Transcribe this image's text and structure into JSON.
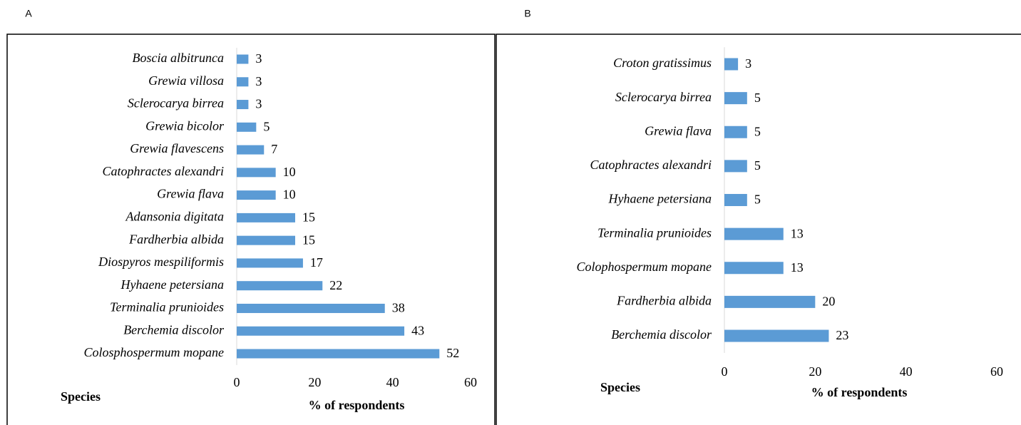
{
  "chart_data": [
    {
      "type": "barh",
      "label": "A",
      "color": "#5b9bd5",
      "categories": [
        "Boscia albitrunca",
        "Grewia villosa",
        "Sclerocarya birrea",
        "Grewia bicolor",
        "Grewia flavescens",
        "Catophractes alexandri",
        "Grewia flava",
        "Adansonia digitata",
        "Fardherbia albida",
        "Diospyros mespiliformis",
        "Hyhaene petersiana",
        "Terminalia prunioides",
        "Berchemia discolor",
        "Colosphospermum mopane"
      ],
      "values": [
        3,
        3,
        3,
        5,
        7,
        10,
        10,
        15,
        15,
        17,
        22,
        38,
        43,
        52
      ],
      "xlim": [
        0,
        60
      ],
      "xticks": [
        0,
        20,
        40,
        60
      ],
      "ylabel": "Species",
      "xlabel": "% of respondents"
    },
    {
      "type": "barh",
      "label": "B",
      "color": "#5b9bd5",
      "categories": [
        "Croton gratissimus",
        "Sclerocarya birrea",
        "Grewia flava",
        "Catophractes alexandri",
        "Hyhaene petersiana",
        "Terminalia prunioides",
        "Colophospermum mopane",
        "Fardherbia albida",
        "Berchemia discolor"
      ],
      "values": [
        3,
        5,
        5,
        5,
        5,
        13,
        13,
        20,
        23
      ],
      "xlim": [
        0,
        60
      ],
      "xticks": [
        0,
        20,
        40,
        60
      ],
      "ylabel": "Species",
      "xlabel": "% of respondents"
    }
  ]
}
